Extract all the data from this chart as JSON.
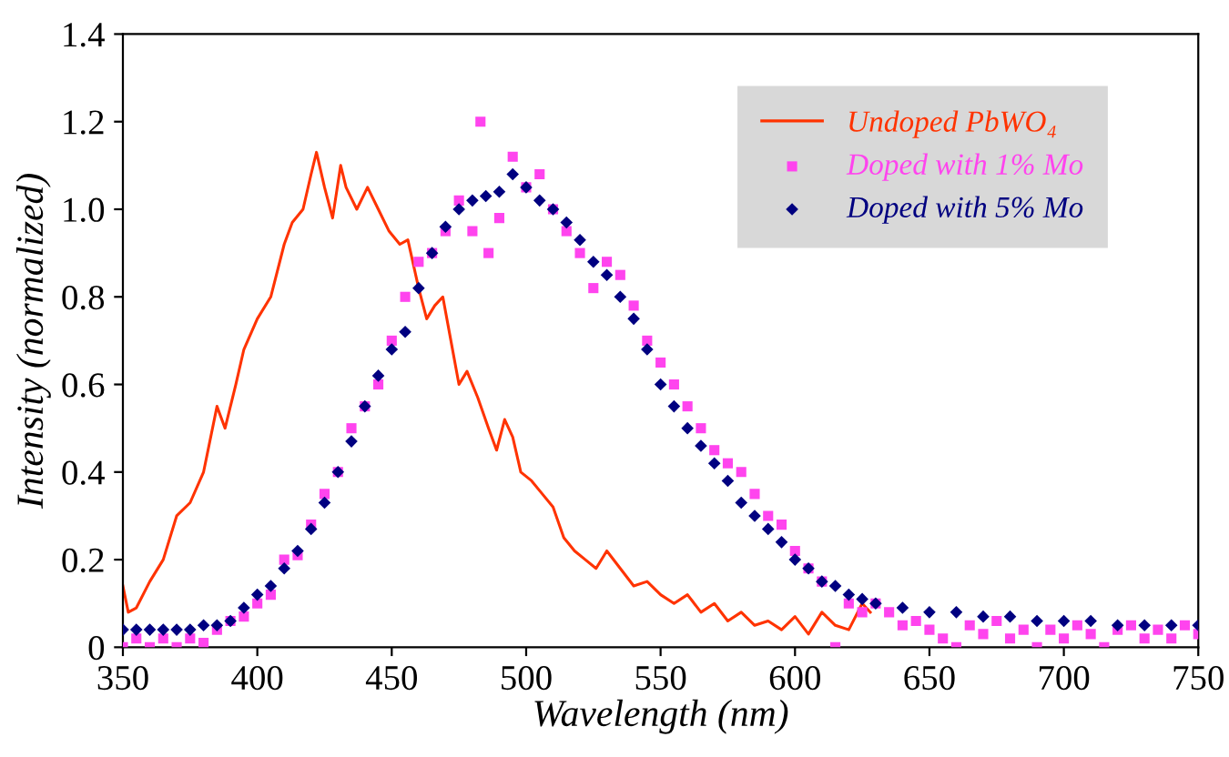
{
  "chart_data": {
    "type": "line",
    "xlabel": "Wavelength (nm)",
    "ylabel": "Intensity (normalized)",
    "xlim": [
      350,
      750
    ],
    "xticks": [
      350,
      400,
      450,
      500,
      550,
      600,
      650,
      700,
      750
    ],
    "ylim": [
      0,
      1.4
    ],
    "yticks": [
      {
        "value": 0,
        "label": "0"
      },
      0.2,
      0.4,
      0.6,
      0.8,
      {
        "value": 1,
        "label": "1.0"
      },
      1.2,
      1.4
    ],
    "grid": false,
    "legend": "top right",
    "series": [
      {
        "name": "Undoped PbWO₄",
        "color": "#ff3300",
        "marker": "none",
        "line_style": "solid",
        "x": [
          350,
          352,
          355,
          360,
          365,
          370,
          375,
          380,
          385,
          388,
          392,
          395,
          400,
          405,
          410,
          413,
          417,
          420,
          422,
          425,
          428,
          431,
          433,
          437,
          441,
          445,
          449,
          453,
          456,
          460,
          463,
          466,
          469,
          472,
          475,
          478,
          482,
          486,
          489,
          492,
          495,
          498,
          502,
          506,
          510,
          514,
          518,
          522,
          526,
          530,
          535,
          540,
          545,
          550,
          555,
          560,
          565,
          570,
          575,
          580,
          585,
          590,
          595,
          600,
          605,
          610,
          615,
          620,
          625,
          628
        ],
        "values": [
          0.14,
          0.08,
          0.09,
          0.15,
          0.2,
          0.3,
          0.33,
          0.4,
          0.55,
          0.5,
          0.6,
          0.68,
          0.75,
          0.8,
          0.92,
          0.97,
          1.0,
          1.08,
          1.13,
          1.05,
          0.98,
          1.1,
          1.05,
          1.0,
          1.05,
          1.0,
          0.95,
          0.92,
          0.93,
          0.82,
          0.75,
          0.78,
          0.8,
          0.7,
          0.6,
          0.63,
          0.57,
          0.5,
          0.45,
          0.52,
          0.48,
          0.4,
          0.38,
          0.35,
          0.32,
          0.25,
          0.22,
          0.2,
          0.18,
          0.22,
          0.18,
          0.14,
          0.15,
          0.12,
          0.1,
          0.12,
          0.08,
          0.1,
          0.06,
          0.08,
          0.05,
          0.06,
          0.04,
          0.07,
          0.03,
          0.08,
          0.05,
          0.04,
          0.1,
          0.08
        ]
      },
      {
        "name": "Doped with 1% Mo",
        "type": "scatter",
        "color": "#ff44ee",
        "marker": "square",
        "x": [
          350,
          355,
          360,
          365,
          370,
          375,
          380,
          385,
          390,
          395,
          400,
          405,
          410,
          415,
          420,
          425,
          430,
          435,
          440,
          445,
          450,
          455,
          460,
          465,
          470,
          475,
          480,
          483,
          486,
          490,
          495,
          500,
          505,
          510,
          515,
          520,
          525,
          530,
          535,
          540,
          545,
          550,
          555,
          560,
          565,
          570,
          575,
          580,
          585,
          590,
          595,
          600,
          605,
          610,
          615,
          620,
          625,
          630,
          635,
          640,
          645,
          650,
          655,
          660,
          665,
          670,
          675,
          680,
          685,
          690,
          695,
          700,
          705,
          710,
          715,
          720,
          725,
          730,
          735,
          740,
          745,
          750
        ],
        "values": [
          0.0,
          0.02,
          0.0,
          0.02,
          0.0,
          0.02,
          0.01,
          0.04,
          0.06,
          0.07,
          0.1,
          0.12,
          0.2,
          0.21,
          0.28,
          0.35,
          0.4,
          0.5,
          0.55,
          0.6,
          0.7,
          0.8,
          0.88,
          0.9,
          0.95,
          1.02,
          0.95,
          1.2,
          0.9,
          0.98,
          1.12,
          1.05,
          1.08,
          1.0,
          0.95,
          0.9,
          0.82,
          0.88,
          0.85,
          0.78,
          0.7,
          0.65,
          0.6,
          0.55,
          0.5,
          0.45,
          0.42,
          0.4,
          0.35,
          0.3,
          0.28,
          0.22,
          0.18,
          0.15,
          0.0,
          0.1,
          0.08,
          0.1,
          0.08,
          0.05,
          0.06,
          0.04,
          0.02,
          0.0,
          0.05,
          0.03,
          0.06,
          0.02,
          0.04,
          0.0,
          0.04,
          0.02,
          0.05,
          0.03,
          0.0,
          0.04,
          0.05,
          0.02,
          0.04,
          0.02,
          0.05,
          0.03
        ]
      },
      {
        "name": "Doped with 5% Mo",
        "type": "scatter",
        "color": "#000080",
        "marker": "diamond",
        "x": [
          350,
          355,
          360,
          365,
          370,
          375,
          380,
          385,
          390,
          395,
          400,
          405,
          410,
          415,
          420,
          425,
          430,
          435,
          440,
          445,
          450,
          455,
          460,
          465,
          470,
          475,
          480,
          485,
          490,
          495,
          500,
          505,
          510,
          515,
          520,
          525,
          530,
          535,
          540,
          545,
          550,
          555,
          560,
          565,
          570,
          575,
          580,
          585,
          590,
          595,
          600,
          605,
          610,
          615,
          620,
          625,
          630,
          640,
          650,
          660,
          670,
          680,
          690,
          700,
          710,
          720,
          730,
          740,
          750
        ],
        "values": [
          0.04,
          0.04,
          0.04,
          0.04,
          0.04,
          0.04,
          0.05,
          0.05,
          0.06,
          0.09,
          0.12,
          0.14,
          0.18,
          0.22,
          0.27,
          0.33,
          0.4,
          0.47,
          0.55,
          0.62,
          0.68,
          0.72,
          0.82,
          0.9,
          0.96,
          1.0,
          1.02,
          1.03,
          1.04,
          1.08,
          1.05,
          1.02,
          1.0,
          0.97,
          0.93,
          0.88,
          0.85,
          0.8,
          0.75,
          0.68,
          0.6,
          0.55,
          0.5,
          0.46,
          0.42,
          0.38,
          0.33,
          0.3,
          0.27,
          0.24,
          0.2,
          0.18,
          0.15,
          0.14,
          0.12,
          0.11,
          0.1,
          0.09,
          0.08,
          0.08,
          0.07,
          0.07,
          0.06,
          0.06,
          0.06,
          0.05,
          0.05,
          0.05,
          0.05
        ]
      }
    ]
  }
}
